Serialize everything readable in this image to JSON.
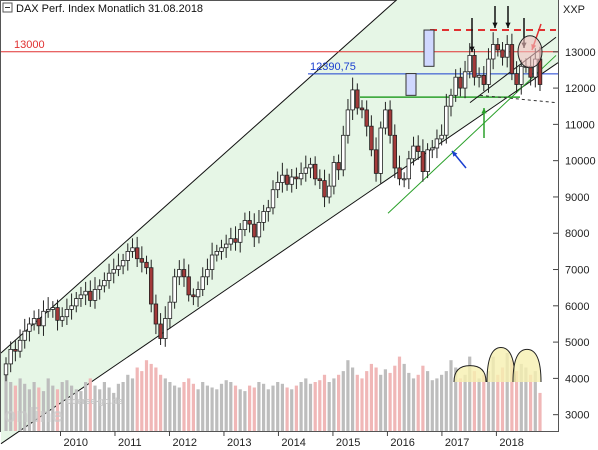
{
  "chart_data": {
    "type": "candlestick",
    "title": "DAX Perf. Index Monatlich",
    "date": "31.08.2018",
    "y_unit_label": "XXP",
    "ylim": [
      2550,
      14400
    ],
    "y_ticks": [
      3000,
      4000,
      5000,
      6000,
      7000,
      8000,
      9000,
      10000,
      11000,
      12000,
      13000
    ],
    "x_labels": [
      "2010",
      "2011",
      "2012",
      "2013",
      "2014",
      "2015",
      "2016",
      "2017",
      "2018"
    ],
    "x_start_year": 2009.0,
    "x_end_year": 2018.8,
    "horizontal_levels": [
      {
        "label": "13000",
        "value": 13000,
        "color": "#e03030"
      },
      {
        "label": "12390,75",
        "value": 12390.75,
        "color": "#1a3fd0"
      },
      {
        "label": "",
        "value": 11750,
        "color": "#2aa02a"
      },
      {
        "label": "",
        "value": 13600,
        "color": "#e03030"
      }
    ],
    "closes": [
      4400,
      4800,
      4750,
      5050,
      5300,
      5500,
      5650,
      5450,
      5850,
      5900,
      5950,
      5600,
      5700,
      5900,
      6000,
      6200,
      6300,
      6400,
      6150,
      6450,
      6550,
      6700,
      6900,
      7000,
      7100,
      7250,
      7500,
      7600,
      7300,
      7200,
      7050,
      6050,
      5500,
      5100,
      5650,
      6100,
      6800,
      7000,
      6800,
      6300,
      6250,
      6450,
      6800,
      7000,
      7400,
      7500,
      7600,
      7700,
      7850,
      7750,
      8100,
      8350,
      8250,
      7900,
      8300,
      8600,
      8700,
      9200,
      9400,
      9600,
      9350,
      9550,
      9500,
      9650,
      9800,
      9900,
      9500,
      9450,
      9000,
      9300,
      9950,
      9750,
      10700,
      11400,
      11950,
      11450,
      11400,
      10950,
      10300,
      9650,
      10900,
      11400,
      10700,
      9800,
      9500,
      9500,
      10050,
      10400,
      10250,
      9700,
      10300,
      10350,
      10600,
      10700,
      11500,
      11800,
      12300,
      12000,
      12450,
      12900,
      12300,
      12350,
      12100,
      12800,
      13200,
      13050,
      12850,
      13200,
      12400,
      12100,
      12600,
      12600,
      12300,
      12800,
      12100
    ],
    "volumes": [
      4100,
      3900,
      3800,
      4000,
      3850,
      3700,
      3900,
      3750,
      3650,
      4000,
      3800,
      3700,
      3900,
      3950,
      3800,
      3700,
      3650,
      3900,
      4000,
      3800,
      3700,
      3900,
      3750,
      3600,
      3850,
      3900,
      4100,
      4000,
      4300,
      4200,
      4500,
      4400,
      4300,
      4100,
      4000,
      3900,
      3800,
      3750,
      3900,
      4000,
      3850,
      3700,
      3900,
      3800,
      3750,
      3700,
      3850,
      3950,
      3900,
      3800,
      3700,
      3650,
      3800,
      3750,
      3900,
      3850,
      3700,
      3800,
      3900,
      3850,
      3750,
      3700,
      3800,
      3900,
      4000,
      3850,
      3900,
      3950,
      4100,
      3900,
      4000,
      4100,
      4200,
      4500,
      4300,
      4100,
      4000,
      4200,
      4400,
      4300,
      4100,
      4250,
      4150,
      4350,
      4600,
      4400,
      4150,
      4000,
      4100,
      4350,
      4200,
      3950,
      4000,
      4100,
      4200,
      4500,
      4300,
      4000,
      4100,
      4600,
      4200,
      4000,
      4100,
      4200,
      4600,
      4100,
      4300,
      4700,
      4500,
      4200,
      4400,
      4300,
      4100,
      4200,
      3600
    ]
  },
  "watermark": {
    "line1": "boerse-go.de",
    "line2": "guidants",
    "line3": "online"
  }
}
